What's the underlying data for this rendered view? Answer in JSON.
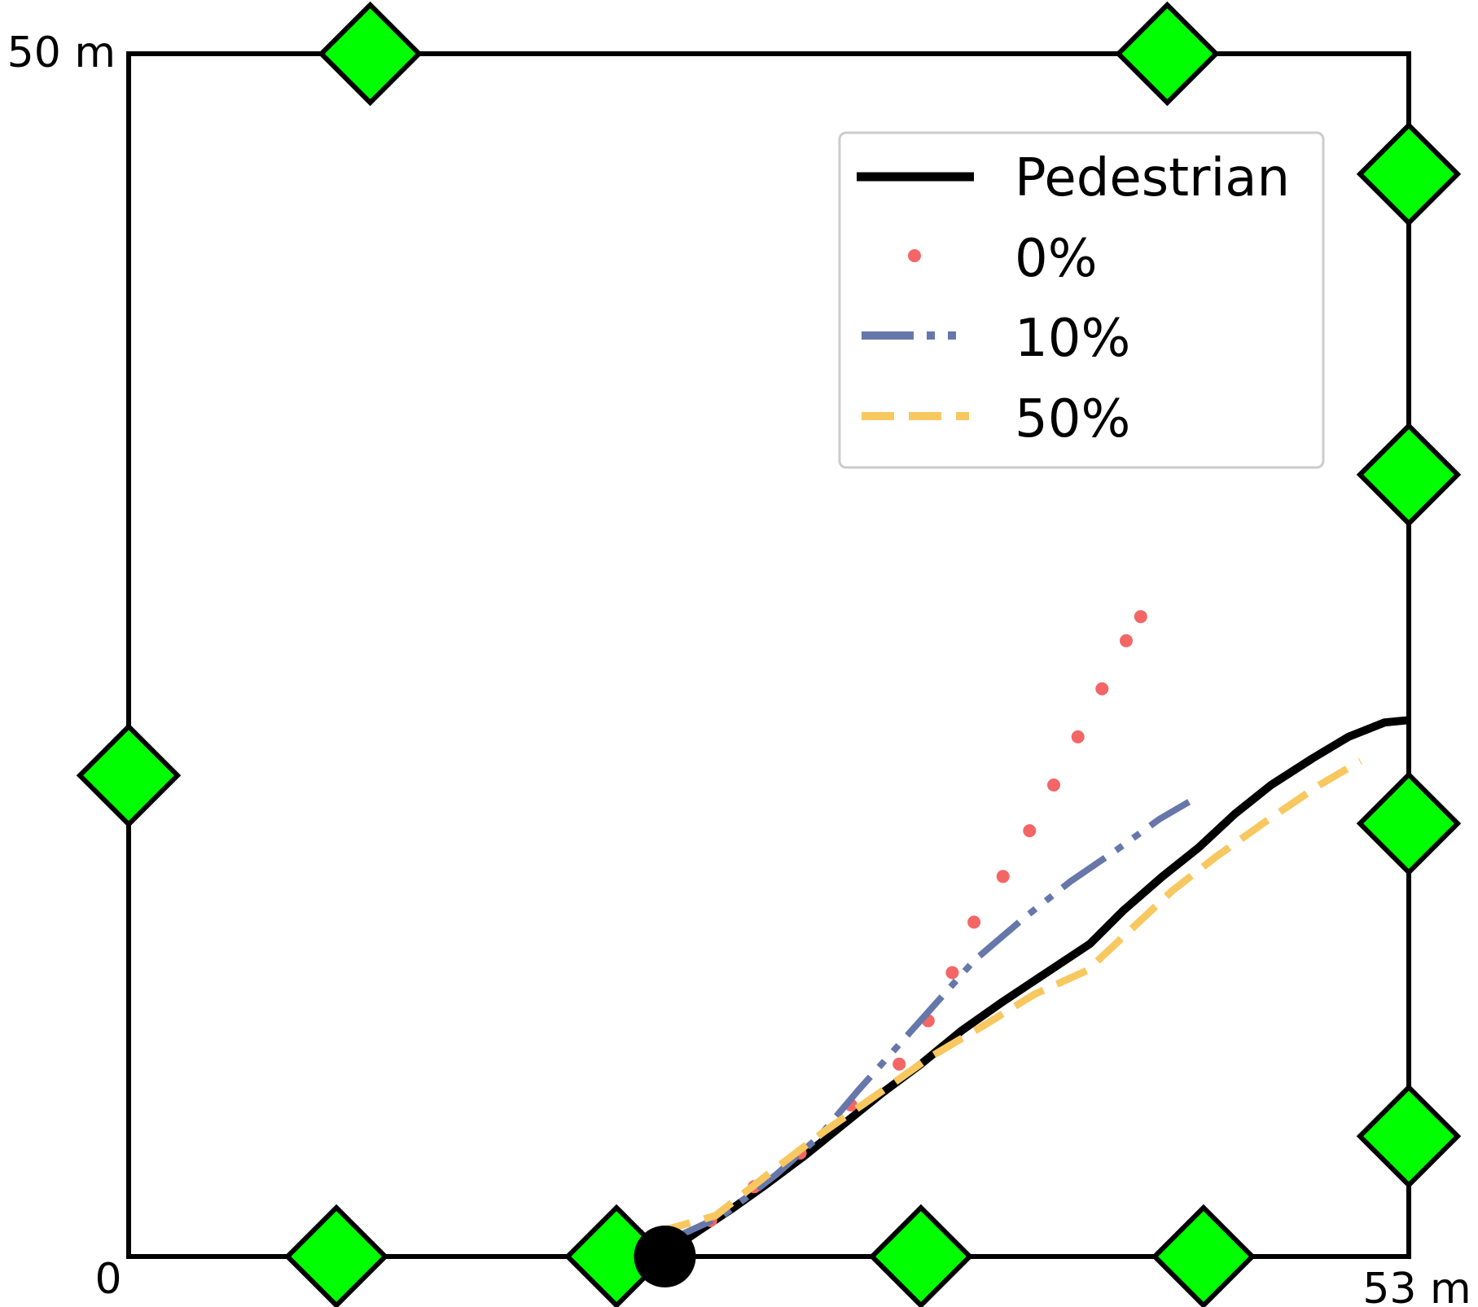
{
  "chart_data": {
    "type": "line",
    "title": "",
    "xlabel": "",
    "ylabel": "",
    "xlim": [
      0,
      53
    ],
    "ylim": [
      0,
      50
    ],
    "corner_labels": {
      "origin": "0",
      "x_max": "53 m",
      "y_max": "50 m"
    },
    "start_point": {
      "x": 22.2,
      "y": 0
    },
    "anchors": [
      {
        "x": 10.0,
        "y": 50
      },
      {
        "x": 43.0,
        "y": 50
      },
      {
        "x": 53,
        "y": 45
      },
      {
        "x": 53,
        "y": 32.5
      },
      {
        "x": 53,
        "y": 18
      },
      {
        "x": 53,
        "y": 5
      },
      {
        "x": 0,
        "y": 20
      },
      {
        "x": 8.6,
        "y": 0
      },
      {
        "x": 20.2,
        "y": 0
      },
      {
        "x": 32.8,
        "y": 0
      },
      {
        "x": 44.5,
        "y": 0
      }
    ],
    "series": [
      {
        "name": "Pedestrian",
        "color": "#000000",
        "style": "solid",
        "points": [
          [
            22.2,
            0.1
          ],
          [
            23.5,
            1.0
          ],
          [
            25.0,
            2.0
          ],
          [
            26.4,
            3.0
          ],
          [
            28.0,
            4.2
          ],
          [
            29.6,
            5.5
          ],
          [
            31.2,
            6.8
          ],
          [
            32.8,
            8.0
          ],
          [
            34.5,
            9.4
          ],
          [
            36.2,
            10.6
          ],
          [
            38.0,
            11.8
          ],
          [
            39.8,
            13.0
          ],
          [
            41.2,
            14.4
          ],
          [
            42.8,
            15.8
          ],
          [
            44.3,
            17.0
          ],
          [
            45.8,
            18.4
          ],
          [
            47.3,
            19.6
          ],
          [
            49.0,
            20.7
          ],
          [
            50.5,
            21.6
          ],
          [
            52.0,
            22.2
          ],
          [
            53.0,
            22.3
          ]
        ]
      },
      {
        "name": "0%",
        "color": "#f46666",
        "style": "dotted",
        "points": [
          [
            20.0,
            0.6
          ],
          [
            24.1,
            1.5
          ],
          [
            25.9,
            2.9
          ],
          [
            27.8,
            4.3
          ],
          [
            29.9,
            6.3
          ],
          [
            31.9,
            8.0
          ],
          [
            33.1,
            9.8
          ],
          [
            34.1,
            11.8
          ],
          [
            35.0,
            13.9
          ],
          [
            36.2,
            15.8
          ],
          [
            37.3,
            17.7
          ],
          [
            38.3,
            19.6
          ],
          [
            39.3,
            21.6
          ],
          [
            40.3,
            23.6
          ],
          [
            41.3,
            25.6
          ],
          [
            41.9,
            26.6
          ]
        ]
      },
      {
        "name": "10%",
        "color": "#6677aa",
        "style": "dashdot",
        "points": [
          [
            22.2,
            0.6
          ],
          [
            24.6,
            1.7
          ],
          [
            26.8,
            3.4
          ],
          [
            28.6,
            5.0
          ],
          [
            30.2,
            6.9
          ],
          [
            31.8,
            8.7
          ],
          [
            33.4,
            10.5
          ],
          [
            35.0,
            12.3
          ],
          [
            37.1,
            14.1
          ],
          [
            39.0,
            15.6
          ],
          [
            40.9,
            16.9
          ],
          [
            42.7,
            18.2
          ],
          [
            43.9,
            18.9
          ]
        ]
      },
      {
        "name": "50%",
        "color": "#f8c860",
        "style": "dashed",
        "points": [
          [
            20.0,
            0.8
          ],
          [
            22.2,
            1.1
          ],
          [
            24.3,
            1.7
          ],
          [
            26.7,
            3.6
          ],
          [
            28.8,
            5.2
          ],
          [
            30.8,
            6.6
          ],
          [
            33.2,
            8.3
          ],
          [
            35.4,
            9.6
          ],
          [
            37.5,
            10.9
          ],
          [
            39.7,
            11.9
          ],
          [
            41.4,
            13.5
          ],
          [
            43.2,
            15.2
          ],
          [
            45.0,
            16.6
          ],
          [
            47.1,
            18.1
          ],
          [
            49.3,
            19.6
          ],
          [
            51.0,
            20.6
          ]
        ]
      }
    ],
    "legend": {
      "position": "upper-right",
      "entries": [
        "Pedestrian",
        "0%",
        "10%",
        "50%"
      ]
    },
    "colors": {
      "anchor_fill": "#00ff00",
      "outline": "#000000",
      "legend_border": "#cccccc"
    }
  }
}
